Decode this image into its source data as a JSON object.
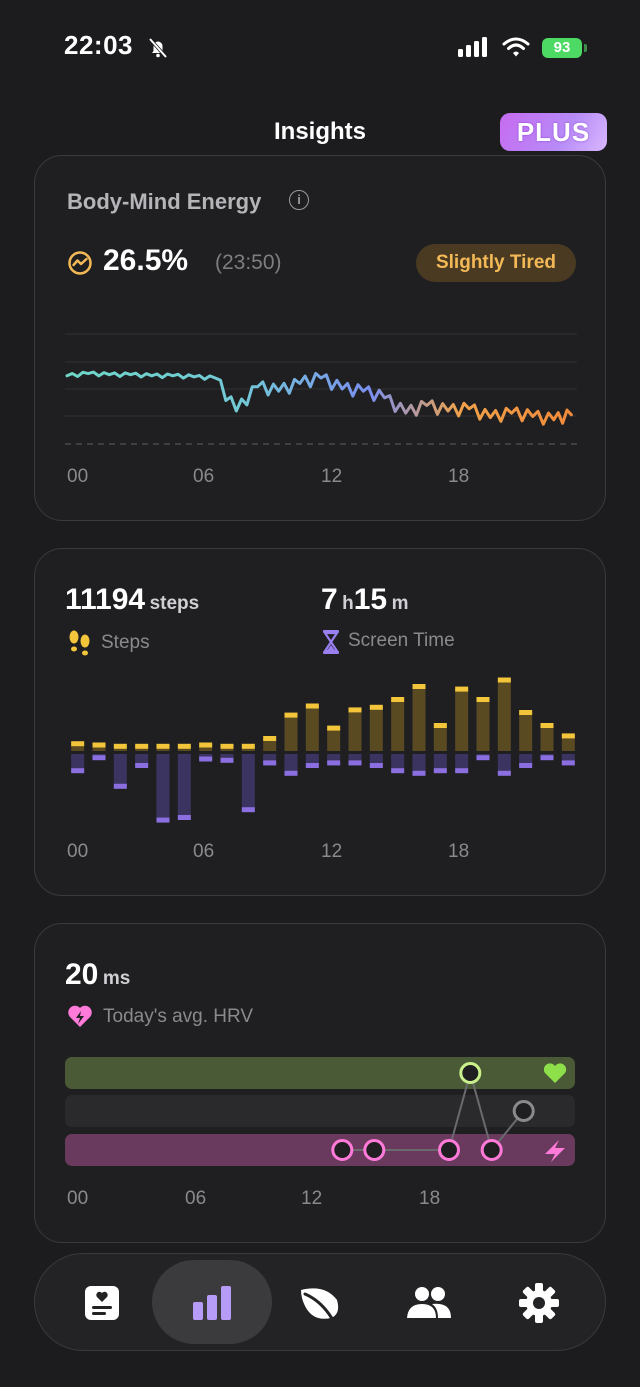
{
  "status": {
    "time": "22:03",
    "battery": "93"
  },
  "header": {
    "title": "Insights",
    "plus_label": "PLUS"
  },
  "energy": {
    "title": "Body-Mind Energy",
    "value": "26.5%",
    "time": "(23:50)",
    "badge": "Slightly Tired",
    "x_ticks": [
      "00",
      "06",
      "12",
      "18"
    ]
  },
  "activity": {
    "steps_value": "11194",
    "steps_unit": "steps",
    "steps_label": "Steps",
    "screen_hours": "7",
    "screen_h_unit": "h",
    "screen_minutes": "15",
    "screen_m_unit": "m",
    "screen_label": "Screen Time",
    "x_ticks": [
      "00",
      "06",
      "12",
      "18"
    ]
  },
  "hrv": {
    "value": "20",
    "unit": "ms",
    "label": "Today's avg. HRV",
    "x_ticks": [
      "00",
      "06",
      "12",
      "18"
    ]
  },
  "colors": {
    "steps": "#f3c53a",
    "screen": "#8b6fe0",
    "hrv_good": "#c9f08a",
    "hrv_low": "#ff7ad9"
  },
  "chart_data": [
    {
      "type": "line",
      "title": "Body-Mind Energy",
      "x": [
        0,
        1,
        2,
        3,
        4,
        5,
        6,
        7,
        8,
        9,
        10,
        11,
        12,
        13,
        14,
        15,
        16,
        17,
        18,
        19,
        20,
        21,
        22,
        23,
        23.83
      ],
      "values": [
        62,
        64,
        63,
        63,
        62,
        62,
        61,
        60,
        30,
        52,
        48,
        55,
        60,
        50,
        48,
        42,
        28,
        35,
        30,
        32,
        24,
        28,
        25,
        22,
        26.5
      ],
      "ylim": [
        0,
        100
      ]
    },
    {
      "type": "bar",
      "categories": [
        "00",
        "01",
        "02",
        "03",
        "04",
        "05",
        "06",
        "07",
        "08",
        "09",
        "10",
        "11",
        "12",
        "13",
        "14",
        "15",
        "16",
        "17",
        "18",
        "19",
        "20",
        "21",
        "22",
        "23"
      ],
      "series": [
        {
          "name": "Steps",
          "values": [
            6,
            5,
            4,
            4,
            4,
            4,
            5,
            4,
            4,
            10,
            28,
            35,
            18,
            32,
            34,
            40,
            50,
            20,
            48,
            40,
            55,
            30,
            20,
            12
          ]
        },
        {
          "name": "Screen Time",
          "values": [
            14,
            4,
            26,
            10,
            52,
            50,
            5,
            6,
            44,
            8,
            16,
            10,
            8,
            8,
            10,
            14,
            16,
            14,
            14,
            4,
            16,
            10,
            4,
            8
          ]
        }
      ]
    },
    {
      "type": "scatter",
      "title": "Today's avg. HRV",
      "x": [
        13,
        14.5,
        18,
        19,
        20,
        21.5
      ],
      "values": [
        "low",
        "low",
        "low",
        "high",
        "low",
        "medium"
      ]
    }
  ]
}
